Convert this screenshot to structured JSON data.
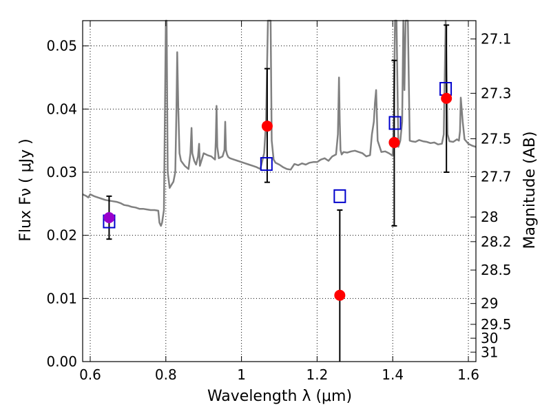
{
  "chart_data": {
    "type": "scatter",
    "xlabel": "Wavelength  λ (μm)",
    "ylabel": "Flux  Fν  ( μJy )",
    "ylabel_right": "Magnitude (AB)",
    "xlim": [
      0.58,
      1.62
    ],
    "ylim": [
      0.0,
      0.054
    ],
    "x_ticks": [
      {
        "value": 0.6,
        "label": "0.6"
      },
      {
        "value": 0.8,
        "label": "0.8"
      },
      {
        "value": 1.0,
        "label": "1"
      },
      {
        "value": 1.2,
        "label": "1.2"
      },
      {
        "value": 1.4,
        "label": "1.4"
      },
      {
        "value": 1.6,
        "label": "1.6"
      }
    ],
    "y_ticks": [
      {
        "value": 0.0,
        "label": "0.00"
      },
      {
        "value": 0.01,
        "label": "0.01"
      },
      {
        "value": 0.02,
        "label": "0.02"
      },
      {
        "value": 0.03,
        "label": "0.03"
      },
      {
        "value": 0.04,
        "label": "0.04"
      },
      {
        "value": 0.05,
        "label": "0.05"
      }
    ],
    "right_ticks": [
      {
        "flux": 0.0511,
        "label": "27.1"
      },
      {
        "flux": 0.0425,
        "label": "27.3"
      },
      {
        "flux": 0.0353,
        "label": "27.5"
      },
      {
        "flux": 0.0293,
        "label": "27.7"
      },
      {
        "flux": 0.0229,
        "label": "28"
      },
      {
        "flux": 0.019,
        "label": "28.2"
      },
      {
        "flux": 0.0145,
        "label": "28.5"
      },
      {
        "flux": 0.0092,
        "label": "29"
      },
      {
        "flux": 0.0059,
        "label": "29.5"
      },
      {
        "flux": 0.0037,
        "label": "30"
      },
      {
        "flux": 0.0015,
        "label": "31"
      }
    ],
    "grid": true,
    "colors": {
      "spectrum": "#808080",
      "observed": "#ff0000",
      "observed_blend": "#9900cc",
      "model": "#0000cc",
      "errorbar": "#000000"
    },
    "series": [
      {
        "type": "line",
        "color": "#808080",
        "x": [
          0.58,
          0.59,
          0.595,
          0.6,
          0.61,
          0.62,
          0.63,
          0.64,
          0.65,
          0.66,
          0.67,
          0.68,
          0.69,
          0.7,
          0.71,
          0.72,
          0.73,
          0.74,
          0.75,
          0.76,
          0.77,
          0.78,
          0.783,
          0.787,
          0.79,
          0.795,
          0.798,
          0.8,
          0.801,
          0.802,
          0.805,
          0.81,
          0.815,
          0.82,
          0.825,
          0.828,
          0.83,
          0.833,
          0.836,
          0.84,
          0.85,
          0.86,
          0.865,
          0.868,
          0.87,
          0.875,
          0.88,
          0.885,
          0.888,
          0.89,
          0.9,
          0.91,
          0.92,
          0.93,
          0.932,
          0.934,
          0.936,
          0.94,
          0.95,
          0.955,
          0.957,
          0.959,
          0.962,
          0.965,
          0.97,
          0.98,
          0.99,
          1.0,
          1.01,
          1.02,
          1.03,
          1.04,
          1.05,
          1.06,
          1.065,
          1.07,
          1.073,
          1.075,
          1.077,
          1.08,
          1.085,
          1.09,
          1.1,
          1.11,
          1.12,
          1.13,
          1.14,
          1.15,
          1.16,
          1.17,
          1.18,
          1.19,
          1.2,
          1.21,
          1.22,
          1.23,
          1.24,
          1.25,
          1.255,
          1.258,
          1.26,
          1.262,
          1.265,
          1.27,
          1.28,
          1.29,
          1.3,
          1.31,
          1.32,
          1.33,
          1.34,
          1.345,
          1.35,
          1.353,
          1.356,
          1.36,
          1.37,
          1.38,
          1.39,
          1.4,
          1.403,
          1.406,
          1.41,
          1.415,
          1.42,
          1.425,
          1.428,
          1.431,
          1.434,
          1.437,
          1.44,
          1.445,
          1.45,
          1.46,
          1.47,
          1.48,
          1.49,
          1.5,
          1.51,
          1.52,
          1.53,
          1.535,
          1.54,
          1.545,
          1.55,
          1.56,
          1.57,
          1.575,
          1.578,
          1.58,
          1.585,
          1.59,
          1.6,
          1.61,
          1.62
        ],
        "y": [
          0.0265,
          0.0262,
          0.026,
          0.0265,
          0.0262,
          0.026,
          0.0258,
          0.0256,
          0.0255,
          0.0254,
          0.0253,
          0.0251,
          0.0248,
          0.0247,
          0.0245,
          0.0244,
          0.0242,
          0.0242,
          0.0241,
          0.024,
          0.024,
          0.0239,
          0.022,
          0.0215,
          0.022,
          0.024,
          0.042,
          0.054,
          0.054,
          0.054,
          0.03,
          0.0275,
          0.028,
          0.0285,
          0.03,
          0.04,
          0.049,
          0.04,
          0.033,
          0.0318,
          0.031,
          0.0305,
          0.033,
          0.037,
          0.033,
          0.0318,
          0.0312,
          0.0325,
          0.0345,
          0.031,
          0.033,
          0.0327,
          0.0325,
          0.032,
          0.035,
          0.0405,
          0.034,
          0.0322,
          0.0325,
          0.0335,
          0.038,
          0.0335,
          0.0328,
          0.0324,
          0.0322,
          0.032,
          0.0318,
          0.0316,
          0.0314,
          0.0312,
          0.031,
          0.0308,
          0.0305,
          0.033,
          0.038,
          0.054,
          0.054,
          0.054,
          0.054,
          0.035,
          0.032,
          0.0315,
          0.0312,
          0.0308,
          0.0305,
          0.0304,
          0.0313,
          0.0311,
          0.0314,
          0.0312,
          0.0315,
          0.0316,
          0.0316,
          0.032,
          0.0322,
          0.0318,
          0.0325,
          0.0328,
          0.036,
          0.045,
          0.038,
          0.0335,
          0.0328,
          0.0332,
          0.0331,
          0.0333,
          0.0334,
          0.0332,
          0.033,
          0.0325,
          0.0327,
          0.036,
          0.038,
          0.041,
          0.043,
          0.035,
          0.0332,
          0.0333,
          0.033,
          0.0326,
          0.039,
          0.054,
          0.054,
          0.034,
          0.035,
          0.038,
          0.054,
          0.043,
          0.054,
          0.054,
          0.054,
          0.035,
          0.0349,
          0.0348,
          0.0351,
          0.0349,
          0.0348,
          0.0346,
          0.0347,
          0.0344,
          0.0345,
          0.036,
          0.054,
          0.036,
          0.0349,
          0.0348,
          0.0352,
          0.035,
          0.0365,
          0.0418,
          0.038,
          0.0352,
          0.0345,
          0.0342,
          0.034
        ]
      },
      {
        "name": "",
        "type": "errorbar",
        "color": "#ff0000",
        "x": [
          0.65,
          1.068,
          1.26,
          1.404,
          1.542
        ],
        "y": [
          0.0228,
          0.0373,
          0.0105,
          0.0347,
          0.0417
        ],
        "yerr_low": [
          0.0034,
          0.0089,
          0.0105,
          0.0132,
          0.0117
        ],
        "yerr_high": [
          0.0034,
          0.0091,
          0.0135,
          0.013,
          0.0116
        ]
      },
      {
        "name": "",
        "type": "scatter",
        "marker": "square",
        "color": "#0000cc",
        "x": [
          0.65,
          1.066,
          1.26,
          1.406,
          1.54
        ],
        "y": [
          0.0222,
          0.0313,
          0.0262,
          0.0378,
          0.0432
        ]
      }
    ]
  }
}
